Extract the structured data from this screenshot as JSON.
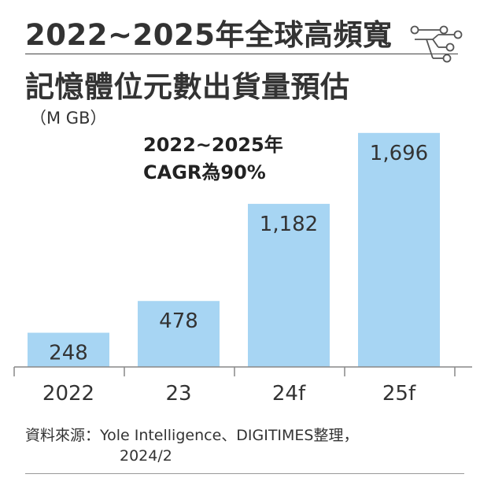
{
  "title": {
    "line1": "2022~2025年全球高頻寬",
    "line2": "記憶體位元數出貨量預估"
  },
  "unit": "（M GB）",
  "annotation": {
    "line1": "2022~2025年",
    "line2": "CAGR為90%"
  },
  "source": {
    "line1": "資料來源：Yole Intelligence、DIGITIMES整理，",
    "line2": "2024/2"
  },
  "colors": {
    "bar": "#a7d5f3",
    "axis": "#888888",
    "label": "#333333",
    "accent_icon": "#555555"
  },
  "icons": {
    "decoration": "circuit-icon"
  },
  "chart_data": {
    "type": "bar",
    "title": "2022~2025年全球高頻寬記憶體位元數出貨量預估",
    "ylabel": "（M GB）",
    "xlabel": "",
    "categories": [
      "2022",
      "23",
      "24f",
      "25f"
    ],
    "values": [
      248,
      478,
      1182,
      1696
    ],
    "value_labels": [
      "248",
      "478",
      "1,182",
      "1,696"
    ],
    "ylim": [
      0,
      1800
    ],
    "grid": false,
    "legend": "none"
  }
}
